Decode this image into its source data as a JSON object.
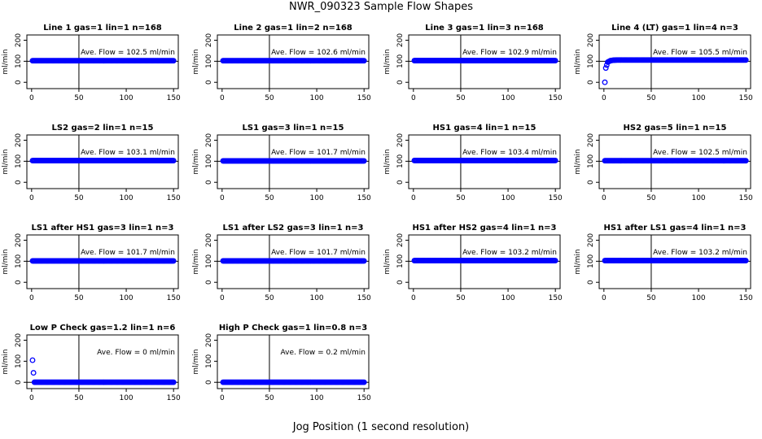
{
  "title": "NWR_090323  Sample Flow Shapes",
  "xlabel": "Jog Position (1 second resolution)",
  "colors": {
    "points": "#0000ff",
    "axes": "#000000"
  },
  "chart_data": [
    {
      "type": "scatter",
      "title": "Line 1 gas=1 lin=1 n=168",
      "ylabel": "ml/min",
      "annotation": "Ave. Flow =  102.5  ml/min",
      "xlim": [
        0,
        150
      ],
      "ylim": [
        0,
        200
      ],
      "xticks": [
        "0",
        "50",
        "100",
        "150"
      ],
      "yticks": [
        "0",
        "100",
        "200"
      ],
      "vline": 50,
      "hline": 100,
      "series": [
        {
          "x": [
            1,
            150
          ],
          "y": [
            102.5,
            102.5
          ]
        }
      ]
    },
    {
      "type": "scatter",
      "title": "Line 2 gas=1 lin=2 n=168",
      "ylabel": "ml/min",
      "annotation": "Ave. Flow =  102.6  ml/min",
      "xlim": [
        0,
        150
      ],
      "ylim": [
        0,
        200
      ],
      "xticks": [
        "0",
        "50",
        "100",
        "150"
      ],
      "yticks": [
        "0",
        "100",
        "200"
      ],
      "vline": 50,
      "hline": 100,
      "series": [
        {
          "x": [
            1,
            150
          ],
          "y": [
            102.6,
            102.6
          ]
        }
      ]
    },
    {
      "type": "scatter",
      "title": "Line 3 gas=1 lin=3 n=168",
      "ylabel": "ml/min",
      "annotation": "Ave. Flow =  102.9  ml/min",
      "xlim": [
        0,
        150
      ],
      "ylim": [
        0,
        200
      ],
      "xticks": [
        "0",
        "50",
        "100",
        "150"
      ],
      "yticks": [
        "0",
        "100",
        "200"
      ],
      "vline": 50,
      "hline": 100,
      "series": [
        {
          "x": [
            1,
            150
          ],
          "y": [
            102.9,
            102.9
          ]
        }
      ]
    },
    {
      "type": "scatter",
      "title": "Line 4 (LT) gas=1 lin=4 n=3",
      "ylabel": "ml/min",
      "annotation": "Ave. Flow =  105.5  ml/min",
      "xlim": [
        0,
        150
      ],
      "ylim": [
        0,
        200
      ],
      "xticks": [
        "0",
        "50",
        "100",
        "150"
      ],
      "yticks": [
        "0",
        "100",
        "200"
      ],
      "vline": 50,
      "hline": 100,
      "series": [
        {
          "x": [
            1,
            2,
            4,
            7,
            10,
            14,
            20,
            150
          ],
          "y": [
            0,
            68,
            96,
            103,
            105,
            106,
            106,
            106
          ]
        }
      ]
    },
    {
      "type": "scatter",
      "title": "LS2 gas=2 lin=1 n=15",
      "ylabel": "ml/min",
      "annotation": "Ave. Flow =  103.1  ml/min",
      "xlim": [
        0,
        150
      ],
      "ylim": [
        0,
        200
      ],
      "xticks": [
        "0",
        "50",
        "100",
        "150"
      ],
      "yticks": [
        "0",
        "100",
        "200"
      ],
      "vline": 50,
      "hline": 100,
      "series": [
        {
          "x": [
            1,
            150
          ],
          "y": [
            103.1,
            103.1
          ]
        }
      ]
    },
    {
      "type": "scatter",
      "title": "LS1 gas=3 lin=1 n=15",
      "ylabel": "ml/min",
      "annotation": "Ave. Flow =  101.7  ml/min",
      "xlim": [
        0,
        150
      ],
      "ylim": [
        0,
        200
      ],
      "xticks": [
        "0",
        "50",
        "100",
        "150"
      ],
      "yticks": [
        "0",
        "100",
        "200"
      ],
      "vline": 50,
      "hline": 100,
      "series": [
        {
          "x": [
            1,
            150
          ],
          "y": [
            101.7,
            101.7
          ]
        }
      ]
    },
    {
      "type": "scatter",
      "title": "HS1 gas=4 lin=1 n=15",
      "ylabel": "ml/min",
      "annotation": "Ave. Flow =  103.4  ml/min",
      "xlim": [
        0,
        150
      ],
      "ylim": [
        0,
        200
      ],
      "xticks": [
        "0",
        "50",
        "100",
        "150"
      ],
      "yticks": [
        "0",
        "100",
        "200"
      ],
      "vline": 50,
      "hline": 100,
      "series": [
        {
          "x": [
            1,
            150
          ],
          "y": [
            103.4,
            103.4
          ]
        }
      ]
    },
    {
      "type": "scatter",
      "title": "HS2 gas=5 lin=1 n=15",
      "ylabel": "ml/min",
      "annotation": "Ave. Flow =  102.5  ml/min",
      "xlim": [
        0,
        150
      ],
      "ylim": [
        0,
        200
      ],
      "xticks": [
        "0",
        "50",
        "100",
        "150"
      ],
      "yticks": [
        "0",
        "100",
        "200"
      ],
      "vline": 50,
      "hline": 100,
      "series": [
        {
          "x": [
            1,
            150
          ],
          "y": [
            102.5,
            102.5
          ]
        }
      ]
    },
    {
      "type": "scatter",
      "title": "LS1 after HS1 gas=3 lin=1 n=3",
      "ylabel": "ml/min",
      "annotation": "Ave. Flow =  101.7  ml/min",
      "xlim": [
        0,
        150
      ],
      "ylim": [
        0,
        200
      ],
      "xticks": [
        "0",
        "50",
        "100",
        "150"
      ],
      "yticks": [
        "0",
        "100",
        "200"
      ],
      "vline": 50,
      "hline": 100,
      "series": [
        {
          "x": [
            1,
            150
          ],
          "y": [
            101.7,
            101.7
          ]
        }
      ]
    },
    {
      "type": "scatter",
      "title": "LS1 after LS2 gas=3 lin=1 n=3",
      "ylabel": "ml/min",
      "annotation": "Ave. Flow =  101.7  ml/min",
      "xlim": [
        0,
        150
      ],
      "ylim": [
        0,
        200
      ],
      "xticks": [
        "0",
        "50",
        "100",
        "150"
      ],
      "yticks": [
        "0",
        "100",
        "200"
      ],
      "vline": 50,
      "hline": 100,
      "series": [
        {
          "x": [
            1,
            150
          ],
          "y": [
            101.7,
            101.7
          ]
        }
      ]
    },
    {
      "type": "scatter",
      "title": "HS1 after HS2 gas=4 lin=1 n=3",
      "ylabel": "ml/min",
      "annotation": "Ave. Flow =  103.2  ml/min",
      "xlim": [
        0,
        150
      ],
      "ylim": [
        0,
        200
      ],
      "xticks": [
        "0",
        "50",
        "100",
        "150"
      ],
      "yticks": [
        "0",
        "100",
        "200"
      ],
      "vline": 50,
      "hline": 100,
      "series": [
        {
          "x": [
            1,
            150
          ],
          "y": [
            103.2,
            103.2
          ]
        }
      ]
    },
    {
      "type": "scatter",
      "title": "HS1 after LS1 gas=4 lin=1 n=3",
      "ylabel": "ml/min",
      "annotation": "Ave. Flow =  103.2  ml/min",
      "xlim": [
        0,
        150
      ],
      "ylim": [
        0,
        200
      ],
      "xticks": [
        "0",
        "50",
        "100",
        "150"
      ],
      "yticks": [
        "0",
        "100",
        "200"
      ],
      "vline": 50,
      "hline": 100,
      "series": [
        {
          "x": [
            1,
            150
          ],
          "y": [
            103.2,
            103.2
          ]
        }
      ]
    },
    {
      "type": "scatter",
      "title": "Low P Check gas=1.2 lin=1 n=6",
      "ylabel": "ml/min",
      "annotation": "Ave. Flow =  0  ml/min",
      "xlim": [
        0,
        150
      ],
      "ylim": [
        0,
        200
      ],
      "xticks": [
        "0",
        "50",
        "100",
        "150"
      ],
      "yticks": [
        "0",
        "100",
        "200"
      ],
      "vline": 50,
      "hline": 0,
      "series": [
        {
          "x": [
            1,
            2,
            3,
            150
          ],
          "y": [
            105,
            45,
            0,
            0
          ]
        }
      ]
    },
    {
      "type": "scatter",
      "title": "High P Check gas=1 lin=0.8 n=3",
      "ylabel": "ml/min",
      "annotation": "Ave. Flow =  0.2  ml/min",
      "xlim": [
        0,
        150
      ],
      "ylim": [
        0,
        200
      ],
      "xticks": [
        "0",
        "50",
        "100",
        "150"
      ],
      "yticks": [
        "0",
        "100",
        "200"
      ],
      "vline": 50,
      "hline": 0,
      "series": [
        {
          "x": [
            1,
            150
          ],
          "y": [
            0.2,
            0.2
          ]
        }
      ]
    }
  ]
}
